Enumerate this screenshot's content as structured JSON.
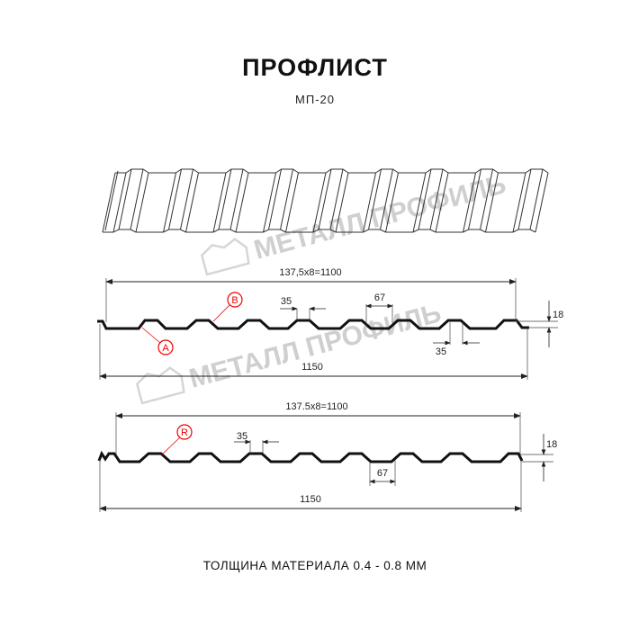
{
  "header": {
    "title": "ПРОФЛИСТ",
    "subtitle": "МП-20"
  },
  "watermark": {
    "text": "МЕТАЛЛ ПРОФИЛЬ"
  },
  "profile1": {
    "pitch_label": "137,5x8=1100",
    "width_label": "1150",
    "rib_top_label": "35",
    "rib_bottom_label": "35",
    "gap_label": "67",
    "height_label": "18",
    "marker_a": "A",
    "marker_b": "B"
  },
  "profile2": {
    "pitch_label": "137.5x8=1100",
    "width_label": "1150",
    "rib_top_label": "35",
    "gap_label": "67",
    "height_label": "18",
    "marker_r": "R"
  },
  "footer": {
    "thickness": "ТОЛЩИНА МАТЕРИАЛА 0.4 - 0.8 ММ"
  },
  "colors": {
    "line": "#111111",
    "marker": "#e00000",
    "watermark": "#cfcfcf"
  }
}
